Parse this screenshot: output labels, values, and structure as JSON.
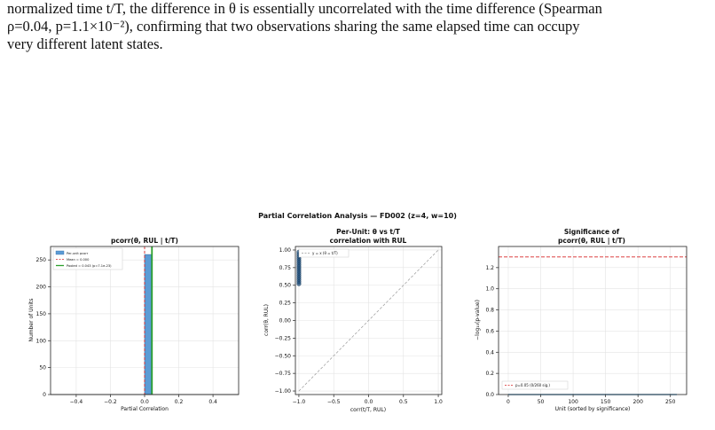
{
  "paragraph": {
    "line1": "normalized time t/T, the difference in θ is essentially uncorrelated with the time difference (Spearman",
    "line2": "ρ=0.04, p=1.1×10⁻²), confirming that two observations sharing the same elapsed time can occupy",
    "line3": "very different latent states."
  },
  "figure": {
    "suptitle": "Partial Correlation Analysis — FD002 (z=4, w=10)"
  },
  "chart_data": [
    {
      "type": "bar",
      "title": "pcorr(θ, RUL | t/T)",
      "xlabel": "Partial Correlation",
      "ylabel": "Number of Units",
      "xlim": [
        -0.55,
        0.55
      ],
      "ylim": [
        0,
        275
      ],
      "xticks": [
        "−0.4",
        "−0.2",
        "0.0",
        "0.2",
        "0.4"
      ],
      "xtick_values": [
        -0.4,
        -0.2,
        0.0,
        0.2,
        0.4
      ],
      "yticks": [
        "0",
        "50",
        "100",
        "150",
        "200",
        "250"
      ],
      "ytick_values": [
        0,
        50,
        100,
        150,
        200,
        250
      ],
      "grid": true,
      "legend_position": "upper-left",
      "bins": [
        {
          "x0": 0.0,
          "x1": 0.04,
          "count": 260
        }
      ],
      "mean": 0.0,
      "pooled": 0.043,
      "legend": [
        "Per-unit pcorr",
        "Mean = 0.000",
        "Pooled = 0.043 (p=7.1e-23)"
      ],
      "colors": {
        "hist": "#5b9bd5",
        "hist_edge": "#3a6ea5",
        "mean": "#d62728",
        "pooled": "#2ca02c"
      }
    },
    {
      "type": "scatter",
      "title_line1": "Per-Unit: θ vs t/T",
      "title_line2": "correlation with RUL",
      "xlabel": "corr(t/T, RUL)",
      "ylabel": "corr(θ, RUL)",
      "xlim": [
        -1.05,
        1.05
      ],
      "ylim": [
        -1.05,
        1.05
      ],
      "xticks": [
        "−1.0",
        "−0.5",
        "0.0",
        "0.5",
        "1.0"
      ],
      "xtick_values": [
        -1.0,
        -0.5,
        0.0,
        0.5,
        1.0
      ],
      "yticks": [
        "−1.00",
        "−0.75",
        "−0.50",
        "−0.25",
        "0.00",
        "0.25",
        "0.50",
        "0.75",
        "1.00"
      ],
      "ytick_values": [
        -1.0,
        -0.75,
        -0.5,
        -0.25,
        0.0,
        0.25,
        0.5,
        0.75,
        1.0
      ],
      "grid": true,
      "legend_position": "upper-left",
      "legend": [
        "y = x (θ = t/T)"
      ],
      "points": [
        {
          "x": -1.0,
          "y": 0.52
        },
        {
          "x": -1.0,
          "y": 0.55
        },
        {
          "x": -1.0,
          "y": 0.58
        },
        {
          "x": -1.0,
          "y": 0.61
        },
        {
          "x": -1.0,
          "y": 0.64
        },
        {
          "x": -1.0,
          "y": 0.67
        },
        {
          "x": -1.0,
          "y": 0.7
        },
        {
          "x": -1.0,
          "y": 0.73
        },
        {
          "x": -1.0,
          "y": 0.76
        },
        {
          "x": -1.0,
          "y": 0.79
        },
        {
          "x": -1.0,
          "y": 0.82
        },
        {
          "x": -1.0,
          "y": 0.85
        },
        {
          "x": -1.0,
          "y": 0.88
        },
        {
          "x": -1.0,
          "y": 0.91
        },
        {
          "x": -1.0,
          "y": 0.94
        },
        {
          "x": -1.0,
          "y": 0.97
        }
      ],
      "colors": {
        "point": "#1f4e79",
        "diag": "#999999"
      }
    },
    {
      "type": "line",
      "title_line1": "Significance of",
      "title_line2": "pcorr(θ, RUL | t/T)",
      "xlabel": "Unit (sorted by significance)",
      "ylabel": "−log₁₀(p-value)",
      "xlim": [
        -15,
        275
      ],
      "ylim": [
        0,
        1.4
      ],
      "xticks": [
        "0",
        "50",
        "100",
        "150",
        "200",
        "250"
      ],
      "xtick_values": [
        0,
        50,
        100,
        150,
        200,
        250
      ],
      "yticks": [
        "0.0",
        "0.2",
        "0.4",
        "0.6",
        "0.8",
        "1.0",
        "1.2"
      ],
      "ytick_values": [
        0.0,
        0.2,
        0.4,
        0.6,
        0.8,
        1.0,
        1.2
      ],
      "grid": true,
      "legend_position": "lower-left",
      "threshold": 1.301,
      "legend": [
        "p=0.05 (0/260 sig.)"
      ],
      "series": [
        {
          "values_range": [
            0,
            260
          ],
          "value": 0.0
        }
      ],
      "colors": {
        "threshold": "#d62728",
        "series": "#1f77b4"
      }
    }
  ]
}
